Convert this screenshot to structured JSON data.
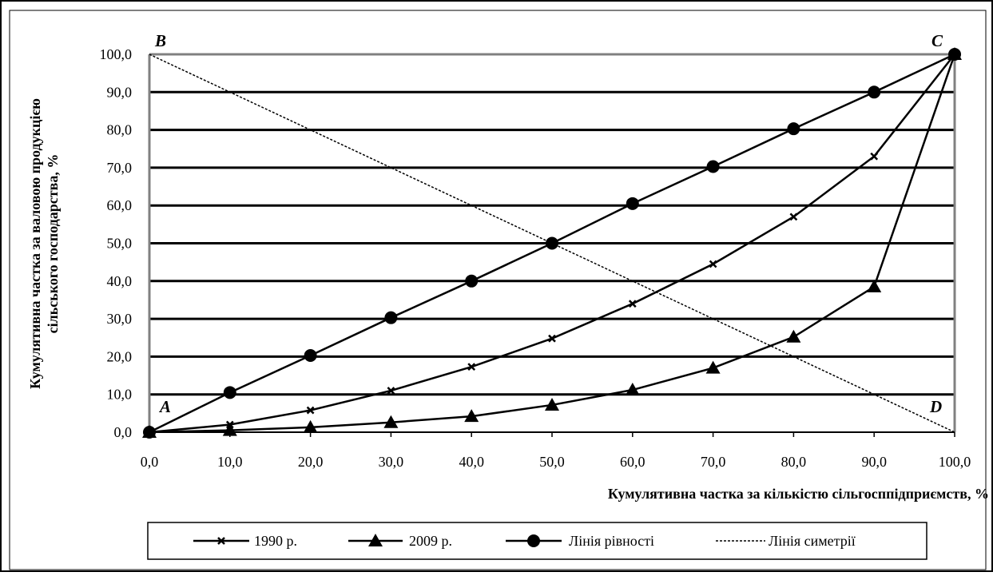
{
  "chart_data": {
    "type": "line",
    "xlabel": "Кумулятивна частка за кількістю сільгосппідприємств, %",
    "ylabel_line1": "Кумулятивна частка за валовою продукцією",
    "ylabel_line2": "сільського господарства, %",
    "xlim": [
      0,
      100
    ],
    "ylim": [
      0,
      100
    ],
    "x_ticks": [
      "0,0",
      "10,0",
      "20,0",
      "30,0",
      "40,0",
      "50,0",
      "60,0",
      "70,0",
      "80,0",
      "90,0",
      "100,0"
    ],
    "y_ticks": [
      "0,0",
      "10,0",
      "20,0",
      "30,0",
      "40,0",
      "50,0",
      "60,0",
      "70,0",
      "80,0",
      "90,0",
      "100,0"
    ],
    "grid": "horizontal",
    "legend_position": "bottom",
    "corner_labels": {
      "A": "A",
      "B": "B",
      "C": "C",
      "D": "D"
    },
    "x": [
      0,
      10,
      20,
      30,
      40,
      50,
      60,
      70,
      80,
      90,
      100
    ],
    "series": [
      {
        "name": "1990 р.",
        "marker": "x",
        "values": [
          0,
          2,
          5.8,
          11,
          17.3,
          24.8,
          34,
          44.5,
          57,
          73,
          100
        ]
      },
      {
        "name": "2009 р.",
        "marker": "triangle",
        "values": [
          0,
          0.5,
          1.3,
          2.6,
          4.2,
          7.2,
          11.2,
          17,
          25.2,
          38.5,
          100
        ]
      },
      {
        "name": "Лінія рівності",
        "marker": "circle",
        "values": [
          0,
          10.5,
          20.3,
          30.3,
          40,
          50,
          60.5,
          70.3,
          80.3,
          90,
          100
        ]
      },
      {
        "name": "Лінія симетрії",
        "marker": "none",
        "dashed": true,
        "values": [
          100,
          90,
          80,
          70,
          60,
          50,
          40,
          30,
          20,
          10,
          0
        ]
      }
    ]
  }
}
